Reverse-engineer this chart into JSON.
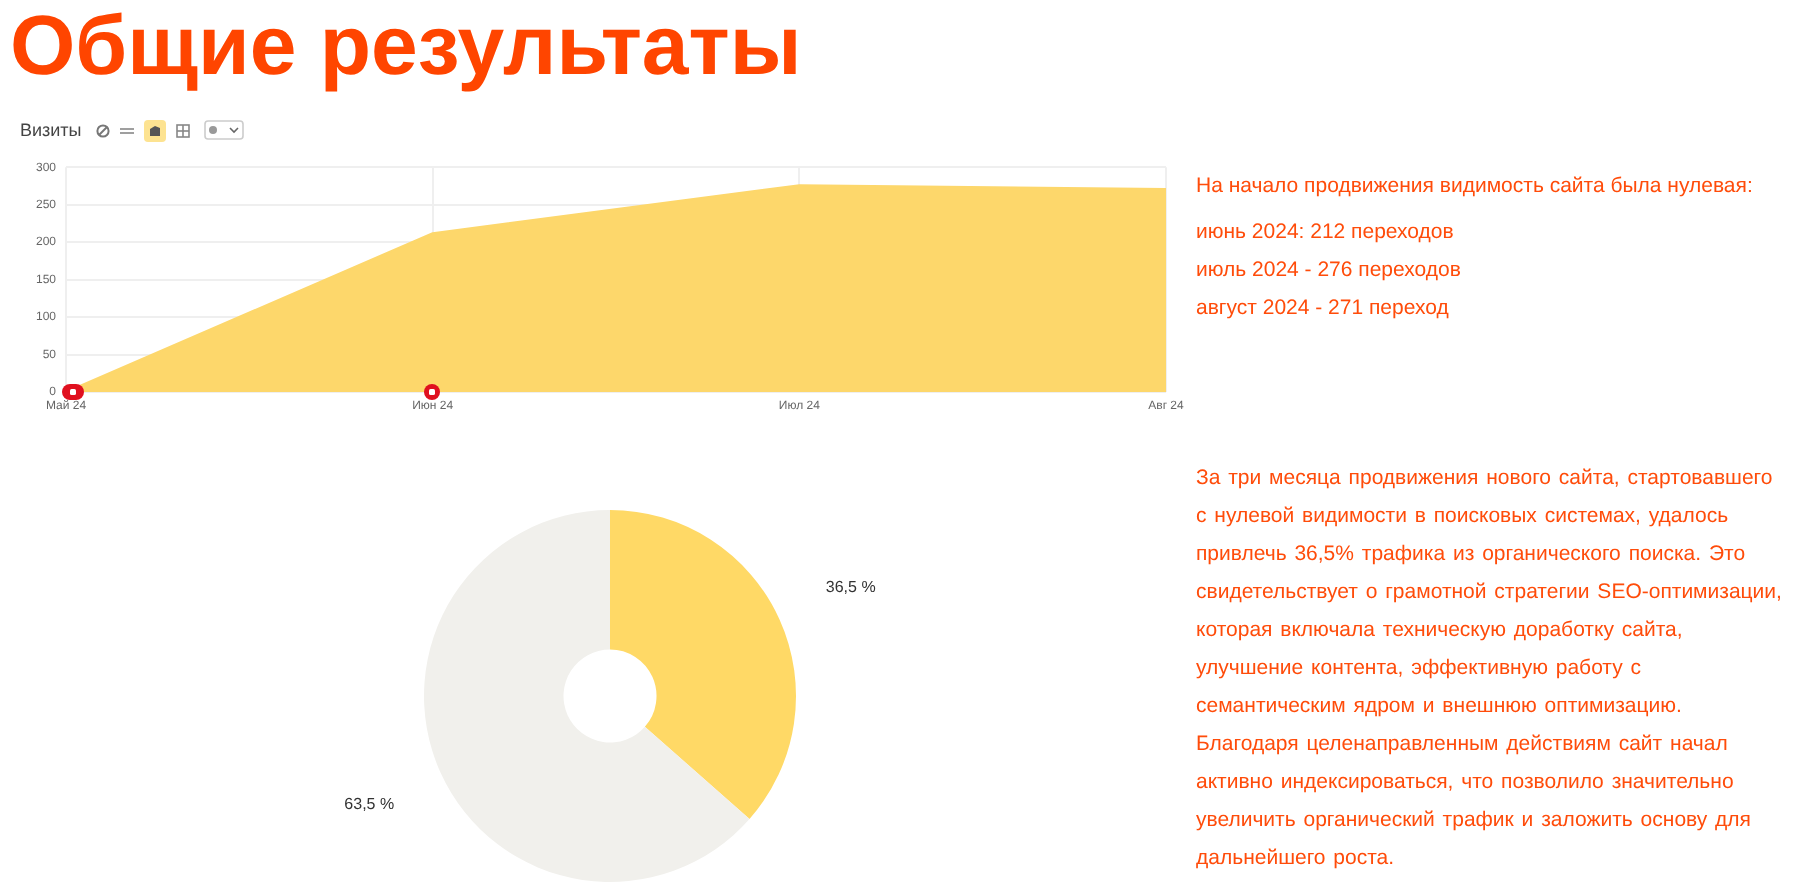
{
  "chart_data": [
    {
      "type": "area",
      "title": "Общие результаты",
      "subtitle": "Визиты",
      "categories": [
        "Май 24",
        "Июн 24",
        "Июл 24",
        "Авг 24"
      ],
      "values": [
        0,
        212,
        276,
        271
      ],
      "color": "#fdd76b",
      "ylim": [
        0,
        300
      ],
      "yticks": [
        0,
        50,
        100,
        150,
        200,
        250,
        300
      ],
      "grid": true,
      "annotations": [
        "На начало продвижения видимость сайта была нулевая:",
        "июнь 2024: 212 переходов",
        "июль 2024 - 276 переходов",
        "август 2024 - 271 переход"
      ]
    },
    {
      "type": "donut",
      "categories": [
        null,
        null
      ],
      "values": [
        36.5,
        63.5
      ],
      "colors": [
        "#ffd966",
        "#f1f0ec"
      ],
      "value_labels": [
        "36,5 %",
        "63,5 %"
      ],
      "annotations": [
        "За три месяца продвижения нового сайта, стартовавшего с нулевой видимости в поисковых системах, удалось привлечь 36,5% трафика из органического поиска. Это свидетельствует о грамотной стратегии SEO-оптимизации, которая включала техническую доработку сайта, улучшение контента, эффективную работу с семантическим ядром и внешнюю оптимизацию. Благодаря целенаправленным действиям сайт начал активно индексироваться, что позволило значительно увеличить органический трафик и заложить основу для дальнейшего роста."
      ]
    }
  ]
}
